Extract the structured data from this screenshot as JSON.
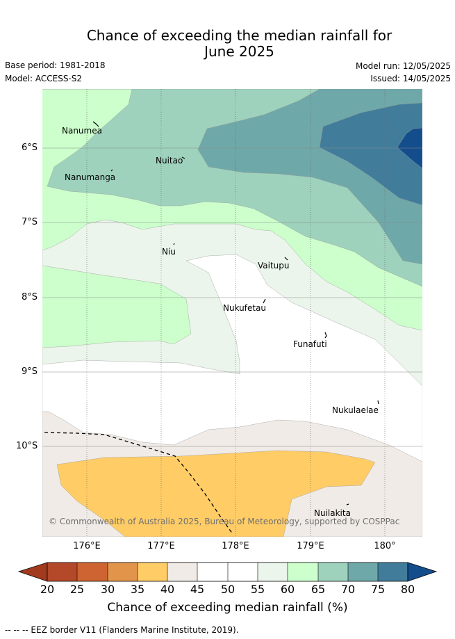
{
  "title": "Chance of exceeding the median rainfall for\nJune 2025",
  "title_line1": "Chance of exceeding the median rainfall for",
  "title_line2": "June 2025",
  "base_period": "Base period: 1981-2018",
  "model": "Model: ACCESS-S2",
  "model_run": "Model run: 12/05/2025",
  "issued": "Issued: 14/05/2025",
  "latitude_labels": [
    "6°S",
    "7°S",
    "8°S",
    "9°S",
    "10°S"
  ],
  "longitude_labels": [
    "176°E",
    "177°E",
    "178°E",
    "179°E",
    "180°"
  ],
  "places": [
    {
      "name": "Nanumea"
    },
    {
      "name": "Nuitao"
    },
    {
      "name": "Nanumanga"
    },
    {
      "name": "Niu"
    },
    {
      "name": "Vaitupu"
    },
    {
      "name": "Nukufetau"
    },
    {
      "name": "Funafuti"
    },
    {
      "name": "Nukulaelae"
    },
    {
      "name": "Nuilakita"
    }
  ],
  "copyright": "© Commonwealth of Australia 2025, Bureau of Meteorology, supported by COSPPac",
  "colorbar": {
    "label": "Chance of exceeding median rainfall (%)",
    "ticks": [
      "20",
      "25",
      "30",
      "35",
      "40",
      "45",
      "50",
      "55",
      "60",
      "65",
      "70",
      "75",
      "80"
    ],
    "colors": [
      "#a23a1e",
      "#b4492a",
      "#cd6432",
      "#e1944a",
      "#ffcc66",
      "#f0ebe6",
      "#ffffff",
      "#ffffff",
      "#ebf5eb",
      "#ccffcc",
      "#9ed2bc",
      "#6fa8a8",
      "#417d9b",
      "#144d8c"
    ]
  },
  "footer": "--  --  -- EEZ border V11 (Flanders Marine Institute, 2019)."
}
